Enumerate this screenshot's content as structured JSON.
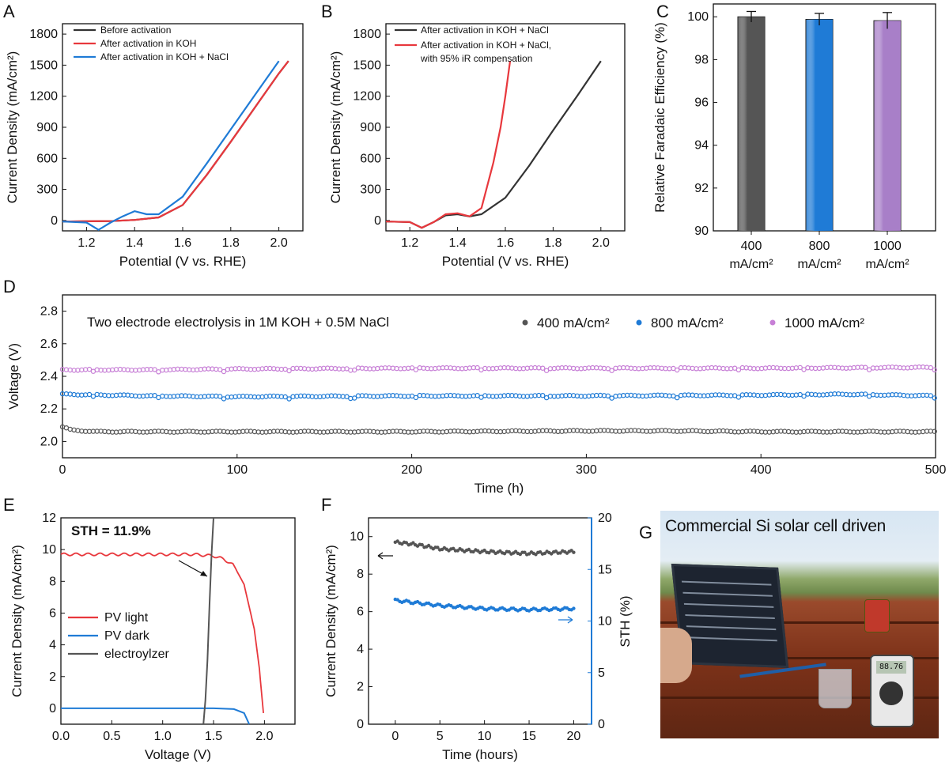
{
  "panels": {
    "A": {
      "letter": "A",
      "ylabel": "Current Density (mA/cm²)",
      "xlabel": "Potential (V vs. RHE)",
      "xlim": [
        1.1,
        2.1
      ],
      "ylim": [
        -100,
        1900
      ],
      "xticks": [
        "1.2",
        "1.4",
        "1.6",
        "1.8",
        "2.0"
      ],
      "xtick_values": [
        1.2,
        1.4,
        1.6,
        1.8,
        2.0
      ],
      "yticks": [
        "0",
        "300",
        "600",
        "900",
        "1200",
        "1500",
        "1800"
      ],
      "ytick_values": [
        0,
        300,
        600,
        900,
        1200,
        1500,
        1800
      ],
      "legend": [
        "Before activation",
        "After activation in KOH",
        "After activation in KOH + NaCl"
      ],
      "colors": [
        "#333333",
        "#e8383d",
        "#1f7bd6"
      ]
    },
    "B": {
      "letter": "B",
      "ylabel": "Current Density (mA/cm²)",
      "xlabel": "Potential (V vs. RHE)",
      "xlim": [
        1.1,
        2.1
      ],
      "ylim": [
        -100,
        1900
      ],
      "xticks": [
        "1.2",
        "1.4",
        "1.6",
        "1.8",
        "2.0"
      ],
      "xtick_values": [
        1.2,
        1.4,
        1.6,
        1.8,
        2.0
      ],
      "yticks": [
        "0",
        "300",
        "600",
        "900",
        "1200",
        "1500",
        "1800"
      ],
      "ytick_values": [
        0,
        300,
        600,
        900,
        1200,
        1500,
        1800
      ],
      "legend": [
        "After activation in KOH + NaCl",
        "After activation in KOH + NaCl,",
        "with 95% iR compensation"
      ],
      "colors": [
        "#333333",
        "#e8383d"
      ]
    },
    "C": {
      "letter": "C",
      "ylabel": "Relative Faradaic Efficiency (%)",
      "ylim": [
        90,
        100.6
      ],
      "yticks": [
        "90",
        "92",
        "94",
        "96",
        "98",
        "100"
      ],
      "ytick_values": [
        90,
        92,
        94,
        96,
        98,
        100
      ],
      "cat_line1": [
        "400",
        "800",
        "1000"
      ],
      "cat_line2": [
        "mA/cm²",
        "mA/cm²",
        "mA/cm²"
      ]
    },
    "D": {
      "letter": "D",
      "ylabel": "Voltage (V)",
      "xlabel": "Time (h)",
      "title": "Two electrode electrolysis in 1M KOH + 0.5M NaCl",
      "xlim": [
        0,
        500
      ],
      "ylim": [
        1.9,
        2.9
      ],
      "xticks": [
        "0",
        "100",
        "200",
        "300",
        "400",
        "500"
      ],
      "xtick_values": [
        0,
        100,
        200,
        300,
        400,
        500
      ],
      "yticks": [
        "2.0",
        "2.2",
        "2.4",
        "2.6",
        "2.8"
      ],
      "ytick_values": [
        2.0,
        2.2,
        2.4,
        2.6,
        2.8
      ],
      "legend": [
        "400  mA/cm²",
        "800  mA/cm²",
        "1000 mA/cm²"
      ],
      "colors": [
        "#555555",
        "#1f7bd6",
        "#c77fd6"
      ]
    },
    "E": {
      "letter": "E",
      "ylabel": "Current Density (mA/cm²)",
      "xlabel": "Voltage (V)",
      "annotation": "STH = 11.9%",
      "xlim": [
        0,
        2.3
      ],
      "ylim": [
        -1,
        12
      ],
      "xticks": [
        "0.0",
        "0.5",
        "1.0",
        "1.5",
        "2.0"
      ],
      "xtick_values": [
        0,
        0.5,
        1.0,
        1.5,
        2.0
      ],
      "yticks": [
        "0",
        "2",
        "4",
        "6",
        "8",
        "10",
        "12"
      ],
      "ytick_values": [
        0,
        2,
        4,
        6,
        8,
        10,
        12
      ],
      "legend": [
        "PV light",
        "PV dark",
        "electroylzer"
      ],
      "colors": [
        "#e8383d",
        "#1f7bd6",
        "#555555"
      ]
    },
    "F": {
      "letter": "F",
      "ylabel": "Current Density (mA/cm²)",
      "y2label": "STH (%)",
      "xlabel": "Time (hours)",
      "xlim": [
        -3,
        22
      ],
      "ylim": [
        0,
        11
      ],
      "y2lim": [
        0,
        20
      ],
      "xticks": [
        "0",
        "5",
        "10",
        "15",
        "20"
      ],
      "xtick_values": [
        0,
        5,
        10,
        15,
        20
      ],
      "yticks": [
        "0",
        "2",
        "4",
        "6",
        "8",
        "10"
      ],
      "ytick_values": [
        0,
        2,
        4,
        6,
        8,
        10
      ],
      "y2ticks": [
        "0",
        "5",
        "10",
        "15",
        "20"
      ],
      "y2tick_values": [
        0,
        5,
        10,
        15,
        20
      ],
      "colors": [
        "#555555",
        "#1f7bd6"
      ]
    },
    "G": {
      "letter": "G",
      "caption": "Commercial Si solar cell driven",
      "meter_reading": "88.76"
    }
  },
  "chart_data": [
    {
      "type": "line",
      "series": [
        {
          "name": "Before activation",
          "x": [
            1.1,
            1.2,
            1.3,
            1.4,
            1.5,
            1.6,
            1.7,
            1.8,
            1.9,
            2.0,
            2.04
          ],
          "y": [
            -10,
            -8,
            -6,
            5,
            30,
            150,
            440,
            760,
            1090,
            1420,
            1540
          ]
        },
        {
          "name": "After activation in KOH",
          "x": [
            1.1,
            1.2,
            1.3,
            1.4,
            1.5,
            1.6,
            1.7,
            1.8,
            1.9,
            2.0,
            2.04
          ],
          "y": [
            -10,
            -8,
            -6,
            5,
            30,
            150,
            440,
            760,
            1090,
            1420,
            1540
          ]
        },
        {
          "name": "After activation in KOH + NaCl",
          "x": [
            1.1,
            1.2,
            1.25,
            1.3,
            1.35,
            1.4,
            1.45,
            1.5,
            1.6,
            1.7,
            1.8,
            1.9,
            2.0
          ],
          "y": [
            -10,
            -20,
            -90,
            -20,
            40,
            90,
            60,
            60,
            230,
            550,
            880,
            1210,
            1540
          ]
        }
      ]
    },
    {
      "type": "line",
      "series": [
        {
          "name": "After activation in KOH + NaCl",
          "x": [
            1.1,
            1.2,
            1.25,
            1.3,
            1.35,
            1.4,
            1.45,
            1.5,
            1.6,
            1.7,
            1.8,
            1.9,
            2.0
          ],
          "y": [
            -10,
            -15,
            -70,
            -15,
            50,
            60,
            40,
            60,
            220,
            530,
            870,
            1200,
            1540
          ]
        },
        {
          "name": "After activation in KOH + NaCl, with 95% iR compensation",
          "x": [
            1.1,
            1.2,
            1.25,
            1.3,
            1.35,
            1.4,
            1.45,
            1.5,
            1.55,
            1.58,
            1.6,
            1.62
          ],
          "y": [
            -10,
            -15,
            -70,
            -15,
            60,
            70,
            40,
            120,
            560,
            900,
            1200,
            1540
          ]
        }
      ]
    },
    {
      "type": "bar",
      "categories": [
        "400 mA/cm²",
        "800 mA/cm²",
        "1000 mA/cm²"
      ],
      "values": [
        100.0,
        99.88,
        99.82
      ],
      "errors": [
        0.25,
        0.28,
        0.38
      ],
      "colors": [
        "#555555",
        "#1f7bd6",
        "#a87fc8"
      ]
    },
    {
      "type": "scatter",
      "series": [
        {
          "name": "400  mA/cm²",
          "x": [
            0,
            5,
            20,
            50,
            100,
            200,
            300,
            350,
            400,
            450,
            500
          ],
          "y": [
            2.09,
            2.07,
            2.06,
            2.06,
            2.06,
            2.06,
            2.065,
            2.065,
            2.06,
            2.06,
            2.06
          ]
        },
        {
          "name": "800  mA/cm²",
          "x": [
            0,
            50,
            100,
            200,
            300,
            400,
            450,
            500
          ],
          "y": [
            2.29,
            2.28,
            2.275,
            2.28,
            2.28,
            2.285,
            2.29,
            2.28
          ]
        },
        {
          "name": "1000 mA/cm²",
          "x": [
            0,
            50,
            100,
            200,
            300,
            400,
            500
          ],
          "y": [
            2.44,
            2.44,
            2.445,
            2.45,
            2.45,
            2.45,
            2.455
          ]
        }
      ]
    },
    {
      "type": "line",
      "series": [
        {
          "name": "PV light",
          "x": [
            0.0,
            0.5,
            1.0,
            1.3,
            1.5,
            1.6,
            1.7,
            1.8,
            1.9,
            1.95,
            2.0
          ],
          "y": [
            9.7,
            9.7,
            9.7,
            9.7,
            9.6,
            9.4,
            9.0,
            7.8,
            5.0,
            2.5,
            -1.0
          ]
        },
        {
          "name": "PV dark",
          "x": [
            0.0,
            1.5,
            1.7,
            1.8,
            1.85
          ],
          "y": [
            0.0,
            0.0,
            -0.05,
            -0.3,
            -1.0
          ]
        },
        {
          "name": "electroylzer",
          "x": [
            1.4,
            1.42,
            1.44,
            1.46,
            1.48,
            1.5
          ],
          "y": [
            -1.0,
            0.5,
            3.0,
            6.5,
            9.7,
            12.0
          ]
        }
      ]
    },
    {
      "type": "scatter",
      "series": [
        {
          "name": "Current Density",
          "x": [
            0,
            2,
            5,
            10,
            15,
            20
          ],
          "y": [
            9.7,
            9.6,
            9.35,
            9.2,
            9.1,
            9.2
          ]
        },
        {
          "name": "STH",
          "x": [
            0,
            2,
            5,
            10,
            15,
            20
          ],
          "y": [
            12.0,
            11.8,
            11.5,
            11.2,
            11.1,
            11.2
          ]
        }
      ]
    }
  ]
}
